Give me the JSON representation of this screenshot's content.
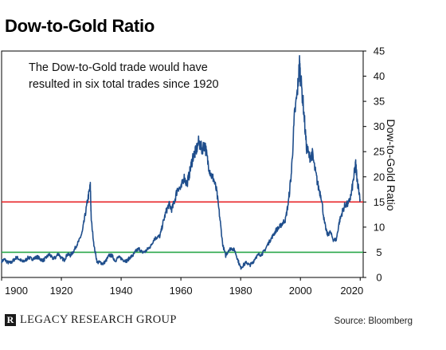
{
  "chart_data": {
    "type": "line",
    "title": "Dow-to-Gold Ratio",
    "annotation": "The Dow-to-Gold trade would have resulted in six total trades since 1920",
    "annotation_lines": [
      "The Dow-to-Gold trade would have",
      "resulted in six total trades since 1920"
    ],
    "xlabel": "",
    "ylabel": "Dow-to-Gold Ratio",
    "xlim": [
      1900,
      2021
    ],
    "ylim": [
      0,
      45
    ],
    "x_ticks": [
      1900,
      1920,
      1940,
      1960,
      1980,
      2000,
      2020
    ],
    "y_ticks": [
      0,
      5,
      10,
      15,
      20,
      25,
      30,
      35,
      40,
      45
    ],
    "y_axis_side": "right",
    "grid": false,
    "series": [
      {
        "color": "#1f4e8c",
        "x": [
          1900,
          1901,
          1902,
          1903,
          1904,
          1905,
          1906,
          1907,
          1908,
          1909,
          1910,
          1911,
          1912,
          1913,
          1914,
          1915,
          1916,
          1917,
          1918,
          1919,
          1920,
          1921,
          1922,
          1923,
          1924,
          1925,
          1926,
          1927,
          1928,
          1929,
          1929.7,
          1930,
          1931,
          1932,
          1933,
          1934,
          1935,
          1936,
          1937,
          1938,
          1939,
          1940,
          1941,
          1942,
          1943,
          1944,
          1945,
          1946,
          1947,
          1948,
          1949,
          1950,
          1951,
          1952,
          1953,
          1954,
          1955,
          1956,
          1957,
          1958,
          1959,
          1960,
          1961,
          1962,
          1963,
          1964,
          1965,
          1966,
          1967,
          1968,
          1969,
          1970,
          1971,
          1972,
          1973,
          1974,
          1975,
          1976,
          1977,
          1978,
          1979,
          1980,
          1981,
          1982,
          1983,
          1984,
          1985,
          1986,
          1987,
          1988,
          1989,
          1990,
          1991,
          1992,
          1993,
          1994,
          1995,
          1996,
          1997,
          1998,
          1999,
          1999.7,
          2000,
          2001,
          2002,
          2003,
          2004,
          2005,
          2006,
          2007,
          2008,
          2009,
          2010,
          2011,
          2012,
          2013,
          2014,
          2015,
          2016,
          2017,
          2018,
          2018.5,
          2019,
          2020
        ],
        "values": [
          3.2,
          3.6,
          3.0,
          2.9,
          3.4,
          4.0,
          3.6,
          3.1,
          3.4,
          4.0,
          3.7,
          3.8,
          4.1,
          3.6,
          3.4,
          4.0,
          4.6,
          3.8,
          3.9,
          4.8,
          3.8,
          3.5,
          4.6,
          4.4,
          5.1,
          6.3,
          7.4,
          9.0,
          12.5,
          16.0,
          18.2,
          11.5,
          6.0,
          3.0,
          3.0,
          2.7,
          3.4,
          4.4,
          4.3,
          3.3,
          4.0,
          3.8,
          3.4,
          3.3,
          4.0,
          4.4,
          5.3,
          5.7,
          5.0,
          5.1,
          5.7,
          6.3,
          7.6,
          8.0,
          8.2,
          10.8,
          13.0,
          14.5,
          13.5,
          15.5,
          18.0,
          17.5,
          20.0,
          18.5,
          21.0,
          24.0,
          25.0,
          27.0,
          25.5,
          26.5,
          23.0,
          20.5,
          19.5,
          17.0,
          12.0,
          6.5,
          4.3,
          5.5,
          5.8,
          5.4,
          3.6,
          1.9,
          2.5,
          3.0,
          2.4,
          2.9,
          4.0,
          4.5,
          4.6,
          5.3,
          6.5,
          7.5,
          8.5,
          9.5,
          10.0,
          10.8,
          11.5,
          15.0,
          21.0,
          32.0,
          37.0,
          42.5,
          40.0,
          34.0,
          26.0,
          24.0,
          24.5,
          21.0,
          18.0,
          16.0,
          11.0,
          8.5,
          9.0,
          7.5,
          7.5,
          11.0,
          13.0,
          14.5,
          14.5,
          16.5,
          20.5,
          22.5,
          19.5,
          15.5
        ]
      }
    ],
    "reference_lines": [
      {
        "value": 15,
        "color": "#e8262a"
      },
      {
        "value": 5,
        "color": "#2aa84a"
      }
    ]
  },
  "footer": {
    "brand_logo_letter": "R",
    "brand_name": "LEGACY RESEARCH GROUP",
    "source": "Source: Bloomberg"
  }
}
